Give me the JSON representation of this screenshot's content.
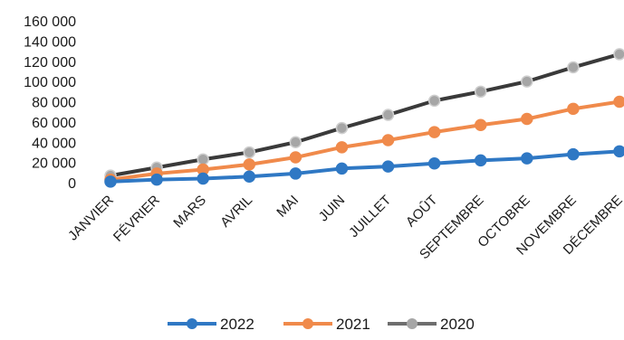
{
  "chart_data": {
    "type": "line",
    "title": "",
    "xlabel": "",
    "ylabel": "",
    "categories": [
      "JANVIER",
      "FÉVRIER",
      "MARS",
      "AVRIL",
      "MAI",
      "JUIN",
      "JUILLET",
      "AOÛT",
      "SEPTEMBRE",
      "OCTOBRE",
      "NOVEMBRE",
      "DÉCEMBRE"
    ],
    "ylim": [
      0,
      160000
    ],
    "yticks": [
      "0",
      "20 000",
      "40 000",
      "60 000",
      "80 000",
      "100 000",
      "120 000",
      "140 000",
      "160 000"
    ],
    "grid": false,
    "legend_position": "bottom",
    "series": [
      {
        "name": "2022",
        "color": "#2f78c4",
        "values": [
          1000,
          3000,
          4000,
          6000,
          9000,
          14000,
          16000,
          19000,
          22000,
          24000,
          28000,
          31000
        ]
      },
      {
        "name": "2021",
        "color": "#f08a4b",
        "values": [
          3000,
          9000,
          13000,
          18000,
          25000,
          35000,
          42000,
          50000,
          57000,
          63000,
          73000,
          80000
        ]
      },
      {
        "name": "2020",
        "color": "#a6a6a6",
        "values": [
          7000,
          15000,
          23000,
          30000,
          40000,
          54000,
          67000,
          81000,
          90000,
          100000,
          114000,
          127000
        ]
      }
    ]
  }
}
